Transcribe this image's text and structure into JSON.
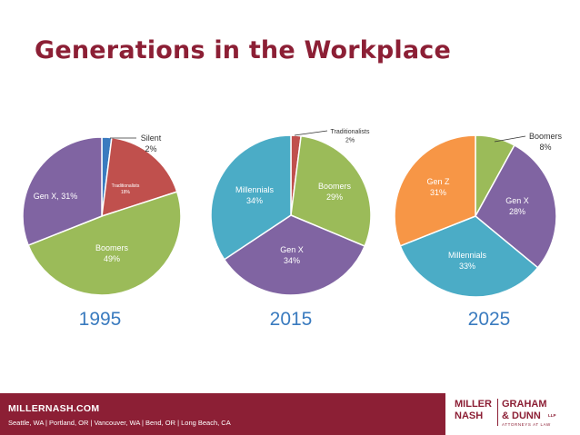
{
  "title": "Generations in the Workplace",
  "colors": {
    "title": "#8c1f35",
    "year": "#3a7bbf",
    "footer_bg": "#8c1f35",
    "label_white": "#ffffff",
    "label_dark": "#333333"
  },
  "chart_data": [
    {
      "type": "pie",
      "title": "1995",
      "slices": [
        {
          "name": "Silent",
          "value": 2,
          "label": "Silent",
          "value_label": "2%",
          "color": "#3a7bbf"
        },
        {
          "name": "Traditionalists",
          "value": 18,
          "label": "Traditionalists",
          "value_label": "18%",
          "color": "#c0504d"
        },
        {
          "name": "Boomers",
          "value": 49,
          "label": "Boomers",
          "value_label": "49%",
          "color": "#9bbb59"
        },
        {
          "name": "Gen X",
          "value": 31,
          "label": "Gen X, 31%",
          "value_label": "",
          "color": "#8064a2"
        }
      ]
    },
    {
      "type": "pie",
      "title": "2015",
      "slices": [
        {
          "name": "Traditionalists",
          "value": 2,
          "label": "Traditionalists",
          "value_label": "2%",
          "color": "#c0504d"
        },
        {
          "name": "Boomers",
          "value": 29,
          "label": "Boomers",
          "value_label": "29%",
          "color": "#9bbb59"
        },
        {
          "name": "Gen X",
          "value": 34,
          "label": "Gen X",
          "value_label": "34%",
          "color": "#8064a2"
        },
        {
          "name": "Millennials",
          "value": 34,
          "label": "Millennials",
          "value_label": "34%",
          "color": "#4bacc6"
        }
      ]
    },
    {
      "type": "pie",
      "title": "2025",
      "slices": [
        {
          "name": "Boomers",
          "value": 8,
          "label": "Boomers",
          "value_label": "8%",
          "color": "#9bbb59"
        },
        {
          "name": "Gen X",
          "value": 28,
          "label": "Gen X",
          "value_label": "28%",
          "color": "#8064a2"
        },
        {
          "name": "Millennials",
          "value": 33,
          "label": "Millennials",
          "value_label": "33%",
          "color": "#4bacc6"
        },
        {
          "name": "Gen Z",
          "value": 31,
          "label": "Gen Z",
          "value_label": "31%",
          "color": "#f79646"
        }
      ]
    }
  ],
  "footer": {
    "site": "MILLERNASH.COM",
    "offices": "Seattle, WA  |  Portland, OR  |  Vancouver, WA  |  Bend, OR  |  Long Beach, CA"
  },
  "logo": {
    "line1": "MILLER",
    "line2": "NASH",
    "line3": "GRAHAM",
    "line4": "& DUNN",
    "llp": "LLP",
    "tagline": "ATTORNEYS AT LAW"
  }
}
